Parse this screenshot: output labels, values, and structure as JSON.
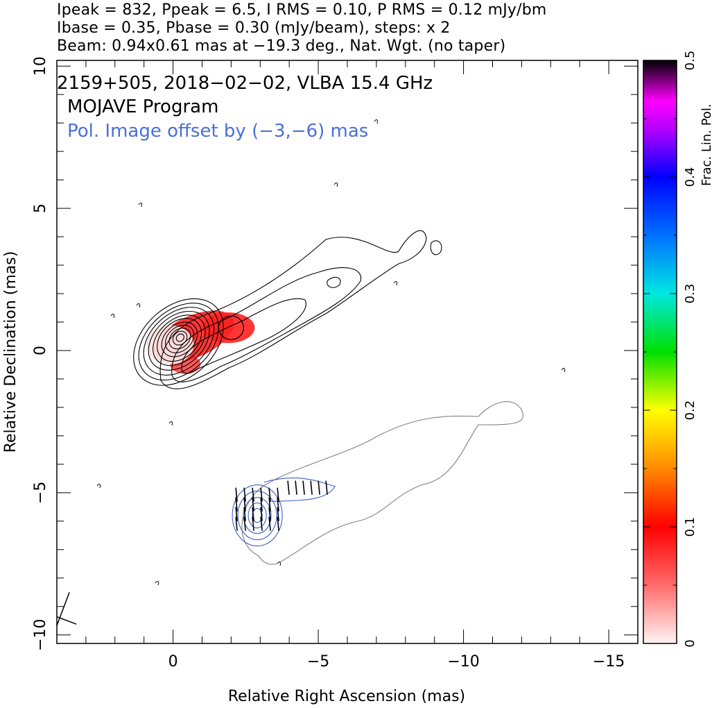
{
  "header": {
    "line1": "Ipeak = 832, Ppeak = 6.5, I RMS = 0.10, P RMS = 0.12 mJy/bm",
    "line2": "Ibase = 0.35, Pbase = 0.30 (mJy/beam), steps: x 2",
    "line3": "Beam: 0.94x0.61 mas at −19.3 deg., Nat. Wgt. (no taper)"
  },
  "annotations": {
    "source": "2159+505, 2018−02−02, VLBA 15.4 GHz",
    "program": "MOJAVE Program",
    "offset_note": "Pol. Image offset by (−3,−6) mas"
  },
  "colors": {
    "stokes_i_contour": "#000000",
    "pol_contour": "#3a5fcd",
    "pol_outline": "#808080",
    "annotation_blue": "#4a6fd8",
    "fractional_pol_fill": "#ff2020"
  },
  "chart_data": {
    "type": "heatmap",
    "title": "2159+505, 2018−02−02, VLBA 15.4 GHz",
    "xlabel": "Relative Right Ascension (mas)",
    "ylabel": "Relative Declination (mas)",
    "xlim": [
      4.0,
      -16.0
    ],
    "ylim": [
      -10.3,
      10.2
    ],
    "x_ticks": [
      0,
      -5,
      -10,
      -15
    ],
    "x_tick_labels": [
      "0",
      "−5",
      "−10",
      "−15"
    ],
    "y_ticks": [
      10,
      5,
      0,
      -5,
      -10
    ],
    "y_tick_labels": [
      "10",
      "5",
      "0",
      "−5",
      "−10"
    ],
    "grid": false,
    "stokes_i": {
      "peak_mjy_per_beam": 832,
      "rms_mjy_per_beam": 0.1,
      "base_mjy_per_beam": 0.35,
      "step_factor": 2,
      "core_position_mas": [
        0.1,
        0.2
      ],
      "jet_knot_mas": [
        -2.0,
        0.8
      ],
      "jet_position_angle_deg": -60,
      "jet_extent_mas": [
        -9.0,
        4.0
      ]
    },
    "polarization": {
      "peak_mjy_per_beam": 6.5,
      "rms_mjy_per_beam": 0.12,
      "base_mjy_per_beam": 0.3,
      "offset_mas": [
        -3,
        -6
      ],
      "evpa_orientation": "roughly north-south"
    },
    "beam": {
      "major_mas": 0.94,
      "minor_mas": 0.61,
      "pa_deg": -19.3,
      "position_mas": [
        3.9,
        -9.4
      ]
    },
    "colorbar": {
      "label": "Frac. Lin. Pol.",
      "range": [
        0,
        0.5
      ],
      "ticks": [
        0,
        0.1,
        0.2,
        0.3,
        0.4,
        0.5
      ],
      "tick_labels": [
        "0",
        "0.1",
        "0.2",
        "0.3",
        "0.4",
        "0.5"
      ]
    }
  }
}
